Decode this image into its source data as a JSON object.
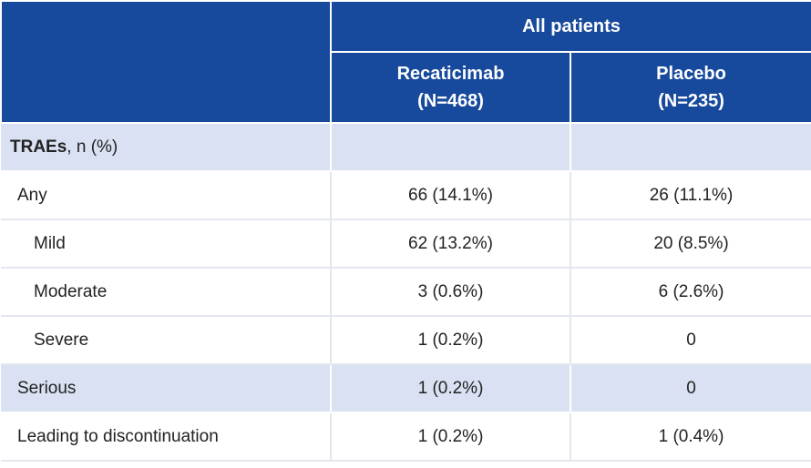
{
  "header": {
    "group": "All patients",
    "columns": [
      {
        "name": "Recaticimab",
        "n": "(N=468)"
      },
      {
        "name": "Placebo",
        "n": "(N=235)"
      }
    ]
  },
  "section": {
    "label": "TRAEs",
    "unit": ", n (%)"
  },
  "rows": [
    {
      "label": "Any",
      "values": [
        "66 (14.1%)",
        "26 (11.1%)"
      ]
    },
    {
      "label": "Mild",
      "values": [
        "62 (13.2%)",
        "20 (8.5%)"
      ]
    },
    {
      "label": "Moderate",
      "values": [
        "3 (0.6%)",
        "6 (2.6%)"
      ]
    },
    {
      "label": "Severe",
      "values": [
        "1 (0.2%)",
        "0"
      ]
    },
    {
      "label": "Serious",
      "values": [
        "1 (0.2%)",
        "0"
      ]
    },
    {
      "label": "Leading to discontinuation",
      "values": [
        "1 (0.2%)",
        "1 (0.4%)"
      ]
    }
  ]
}
